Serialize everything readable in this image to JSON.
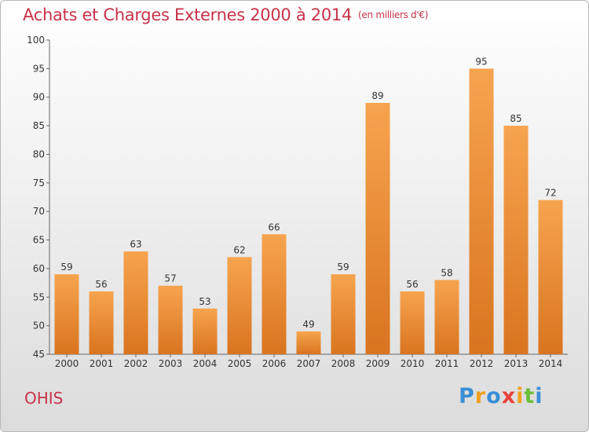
{
  "title": "Achats et Charges Externes 2000 à 2014",
  "unit": "(en milliers d'€)",
  "commune": "OHIS",
  "logo": {
    "letters": [
      "P",
      "r",
      "o",
      "x",
      "i",
      "t",
      "i"
    ],
    "colors": [
      "#3a8fd6",
      "#f0a020",
      "#3a8fd6",
      "#e8413c",
      "#f0a020",
      "#6cbf3a",
      "#3a8fd6"
    ]
  },
  "colors": {
    "bar_light": "#f7a44f",
    "bar_dark": "#d9741f",
    "title": "#c8324a"
  },
  "chart_data": {
    "type": "bar",
    "title": "Achats et Charges Externes 2000 à 2014",
    "subtitle": "(en milliers d'€)",
    "categories": [
      "2000",
      "2001",
      "2002",
      "2003",
      "2004",
      "2005",
      "2006",
      "2007",
      "2008",
      "2009",
      "2010",
      "2011",
      "2012",
      "2013",
      "2014"
    ],
    "values": [
      59,
      56,
      63,
      57,
      53,
      62,
      66,
      49,
      59,
      89,
      56,
      58,
      95,
      85,
      72
    ],
    "ylim": [
      45,
      100
    ],
    "yticks": [
      45,
      50,
      55,
      60,
      65,
      70,
      75,
      80,
      85,
      90,
      95,
      100
    ],
    "grid": false,
    "legend": "none"
  }
}
